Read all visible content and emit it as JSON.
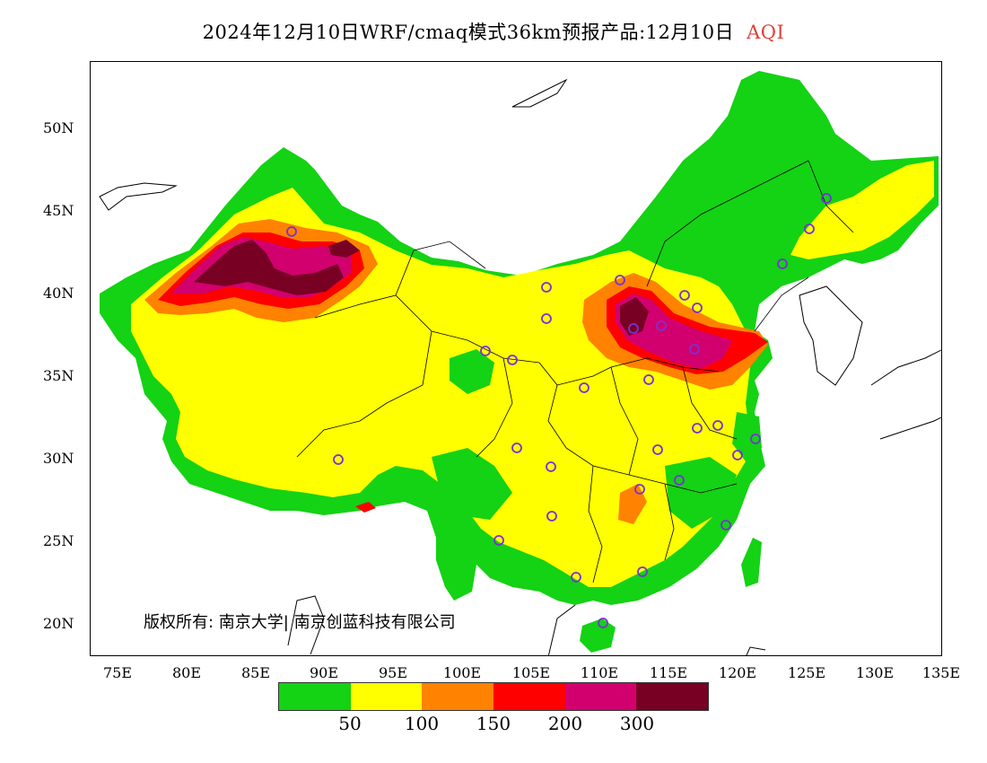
{
  "title": "2024年12月10日WRF/cmaq模式36km预报产品:12月10日",
  "title_highlight": "AQI",
  "copyright": "版权所有: 南京大学| 南京创蓝科技有限公司",
  "lat_labels": [
    "50N",
    "45N",
    "40N",
    "35N",
    "30N",
    "25N",
    "20N"
  ],
  "lon_labels": [
    "75E",
    "80E",
    "85E",
    "90E",
    "95E",
    "100E",
    "105E",
    "110E",
    "115E",
    "120E",
    "125E",
    "130E",
    "135E"
  ],
  "legend": {
    "colors": [
      "#14d214",
      "#ffff00",
      "#ff8200",
      "#ff0000",
      "#d2006e",
      "#780022"
    ],
    "labels": [
      "50",
      "100",
      "150",
      "200",
      "300"
    ]
  },
  "colors": {
    "green": "#14d214",
    "yellow": "#ffff00",
    "orange": "#ff8200",
    "red": "#ff0000",
    "magenta": "#d2006e",
    "darkred": "#780022",
    "station_marker": "#7a2fd8"
  }
}
